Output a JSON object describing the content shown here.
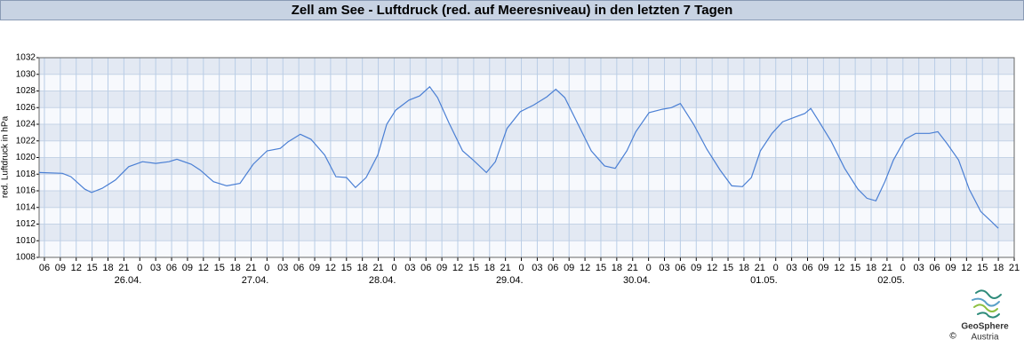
{
  "chart_data": {
    "type": "line",
    "title": "Zell am See - Luftdruck (red. auf Meeresniveau) in den letzten 7 Tagen",
    "y_label": "red. Luftdruck in hPa",
    "ylim": [
      1008,
      1032
    ],
    "yticks": [
      1008,
      1010,
      1012,
      1014,
      1016,
      1018,
      1020,
      1022,
      1024,
      1026,
      1028,
      1030,
      1032
    ],
    "xlim": [
      5,
      189
    ],
    "xticks": [
      {
        "value": 6,
        "label": "06"
      },
      {
        "value": 9,
        "label": "09"
      },
      {
        "value": 12,
        "label": "12"
      },
      {
        "value": 15,
        "label": "15"
      },
      {
        "value": 18,
        "label": "18"
      },
      {
        "value": 21,
        "label": "21"
      },
      {
        "value": 24,
        "label": "0"
      },
      {
        "value": 27,
        "label": "03"
      },
      {
        "value": 30,
        "label": "06"
      },
      {
        "value": 33,
        "label": "09"
      },
      {
        "value": 36,
        "label": "12"
      },
      {
        "value": 39,
        "label": "15"
      },
      {
        "value": 42,
        "label": "18"
      },
      {
        "value": 45,
        "label": "21"
      },
      {
        "value": 48,
        "label": "0"
      },
      {
        "value": 51,
        "label": "03"
      },
      {
        "value": 54,
        "label": "06"
      },
      {
        "value": 57,
        "label": "09"
      },
      {
        "value": 60,
        "label": "12"
      },
      {
        "value": 63,
        "label": "15"
      },
      {
        "value": 66,
        "label": "18"
      },
      {
        "value": 69,
        "label": "21"
      },
      {
        "value": 72,
        "label": "0"
      },
      {
        "value": 75,
        "label": "03"
      },
      {
        "value": 78,
        "label": "06"
      },
      {
        "value": 81,
        "label": "09"
      },
      {
        "value": 84,
        "label": "12"
      },
      {
        "value": 87,
        "label": "15"
      },
      {
        "value": 90,
        "label": "18"
      },
      {
        "value": 93,
        "label": "21"
      },
      {
        "value": 96,
        "label": "0"
      },
      {
        "value": 99,
        "label": "03"
      },
      {
        "value": 102,
        "label": "06"
      },
      {
        "value": 105,
        "label": "09"
      },
      {
        "value": 108,
        "label": "12"
      },
      {
        "value": 111,
        "label": "15"
      },
      {
        "value": 114,
        "label": "18"
      },
      {
        "value": 117,
        "label": "21"
      },
      {
        "value": 120,
        "label": "0"
      },
      {
        "value": 123,
        "label": "03"
      },
      {
        "value": 126,
        "label": "06"
      },
      {
        "value": 129,
        "label": "09"
      },
      {
        "value": 132,
        "label": "12"
      },
      {
        "value": 135,
        "label": "15"
      },
      {
        "value": 138,
        "label": "18"
      },
      {
        "value": 141,
        "label": "21"
      },
      {
        "value": 144,
        "label": "0"
      },
      {
        "value": 147,
        "label": "03"
      },
      {
        "value": 150,
        "label": "06"
      },
      {
        "value": 153,
        "label": "09"
      },
      {
        "value": 156,
        "label": "12"
      },
      {
        "value": 159,
        "label": "15"
      },
      {
        "value": 162,
        "label": "18"
      },
      {
        "value": 165,
        "label": "21"
      },
      {
        "value": 168,
        "label": "0"
      },
      {
        "value": 171,
        "label": "03"
      },
      {
        "value": 174,
        "label": "06"
      },
      {
        "value": 177,
        "label": "09"
      },
      {
        "value": 180,
        "label": "12"
      },
      {
        "value": 183,
        "label": "15"
      },
      {
        "value": 186,
        "label": "18"
      },
      {
        "value": 189,
        "label": "21"
      }
    ],
    "date_labels": [
      {
        "value": 24,
        "label": "26.04."
      },
      {
        "value": 48,
        "label": "27.04."
      },
      {
        "value": 72,
        "label": "28.04."
      },
      {
        "value": 96,
        "label": "29.04."
      },
      {
        "value": 120,
        "label": "30.04."
      },
      {
        "value": 144,
        "label": "01.05."
      },
      {
        "value": 168,
        "label": "02.05."
      }
    ],
    "grid": true,
    "series": [
      {
        "color": "#4a7fd4",
        "x": [
          5,
          9.4,
          11,
          13.6,
          14.9,
          16.9,
          19.4,
          21.9,
          24.5,
          27,
          29.5,
          31,
          33.7,
          35.4,
          37.9,
          40.4,
          42.9,
          45.4,
          48,
          50.5,
          52,
          54.3,
          56.3,
          58.9,
          61,
          63,
          64.7,
          66.7,
          68.9,
          70.6,
          72.3,
          74.8,
          76.8,
          78.7,
          80.2,
          82.3,
          84.9,
          86.9,
          89.4,
          91.1,
          93.3,
          95.8,
          98.3,
          100.8,
          102.5,
          104.2,
          106.7,
          109.2,
          111.7,
          113.7,
          115.9,
          117.6,
          120.1,
          122.6,
          124.3,
          126,
          128.5,
          131,
          133.5,
          135.7,
          137.7,
          139.4,
          141.1,
          143.3,
          145.3,
          147.8,
          149.5,
          150.6,
          152,
          154.5,
          157,
          159.5,
          161.2,
          162.9,
          164.6,
          166.2,
          168.4,
          170.4,
          173,
          174.6,
          176.3,
          178.5,
          180.5,
          182.7,
          184.7,
          186
        ],
        "values": [
          1018.2,
          1018.1,
          1017.7,
          1016.2,
          1015.8,
          1016.3,
          1017.3,
          1018.9,
          1019.5,
          1019.3,
          1019.5,
          1019.8,
          1019.2,
          1018.5,
          1017.1,
          1016.6,
          1016.9,
          1019.2,
          1020.8,
          1021.1,
          1021.9,
          1022.8,
          1022.2,
          1020.3,
          1017.7,
          1017.6,
          1016.4,
          1017.6,
          1020.3,
          1024,
          1025.7,
          1026.9,
          1027.4,
          1028.5,
          1027.2,
          1024.2,
          1020.8,
          1019.7,
          1018.2,
          1019.5,
          1023.5,
          1025.5,
          1026.3,
          1027.3,
          1028.2,
          1027.2,
          1024,
          1020.8,
          1019,
          1018.7,
          1020.8,
          1023.1,
          1025.4,
          1025.8,
          1026,
          1026.5,
          1024,
          1021,
          1018.5,
          1016.6,
          1016.5,
          1017.6,
          1020.8,
          1022.9,
          1024.3,
          1024.9,
          1025.3,
          1025.9,
          1024.5,
          1021.9,
          1018.7,
          1016.2,
          1015.1,
          1014.8,
          1017.1,
          1019.7,
          1022.2,
          1022.9,
          1022.9,
          1023.1,
          1021.7,
          1019.7,
          1016.2,
          1013.5,
          1012.3,
          1011.5
        ]
      }
    ]
  },
  "logo": {
    "name": "GeoSphere",
    "sub": "Austria",
    "copyright": "©"
  }
}
